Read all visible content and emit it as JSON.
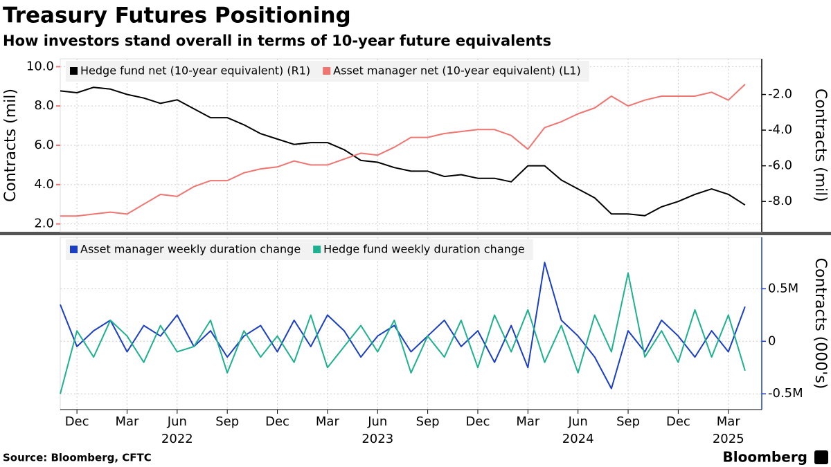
{
  "title": "Treasury Futures Positioning",
  "subtitle": "How investors stand overall in terms of 10-year future equivalents",
  "footer": {
    "source": "Source: Bloomberg, CFTC",
    "brand": "Bloomberg"
  },
  "chart_data": [
    {
      "type": "line",
      "ylabel": "Contracts (mil)",
      "y2label": "Contracts (mil)",
      "x": [
        "2021-11",
        "2021-12",
        "2022-01",
        "2022-02",
        "2022-03",
        "2022-04",
        "2022-05",
        "2022-06",
        "2022-07",
        "2022-08",
        "2022-09",
        "2022-10",
        "2022-11",
        "2022-12",
        "2023-01",
        "2023-02",
        "2023-03",
        "2023-04",
        "2023-05",
        "2023-06",
        "2023-07",
        "2023-08",
        "2023-09",
        "2023-10",
        "2023-11",
        "2023-12",
        "2024-01",
        "2024-02",
        "2024-03",
        "2024-04",
        "2024-05",
        "2024-06",
        "2024-07",
        "2024-08",
        "2024-09",
        "2024-10",
        "2024-11",
        "2024-12",
        "2025-01",
        "2025-02",
        "2025-03",
        "2025-04"
      ],
      "xlim": [
        "2021-11",
        "2025-05"
      ],
      "series": [
        {
          "name": "Hedge fund net (10-year equivalent) (R1)",
          "color": "#000000",
          "axis": "y2",
          "values": [
            -1.8,
            -1.9,
            -1.6,
            -1.7,
            -2.0,
            -2.2,
            -2.5,
            -2.3,
            -2.8,
            -3.3,
            -3.3,
            -3.7,
            -4.2,
            -4.5,
            -4.8,
            -4.7,
            -4.7,
            -5.1,
            -5.7,
            -5.8,
            -6.1,
            -6.3,
            -6.3,
            -6.6,
            -6.5,
            -6.7,
            -6.7,
            -6.9,
            -6.0,
            -6.0,
            -6.8,
            -7.3,
            -7.8,
            -8.7,
            -8.7,
            -8.8,
            -8.3,
            -8.0,
            -7.6,
            -7.3,
            -7.6,
            -8.2
          ]
        },
        {
          "name": "Asset manager net (10-year equivalent) (L1)",
          "color": "#f07470",
          "values": [
            2.4,
            2.4,
            2.5,
            2.6,
            2.5,
            3.0,
            3.5,
            3.4,
            3.9,
            4.2,
            4.2,
            4.6,
            4.8,
            4.9,
            5.2,
            5.0,
            5.0,
            5.3,
            5.6,
            5.5,
            5.9,
            6.4,
            6.4,
            6.6,
            6.7,
            6.8,
            6.8,
            6.5,
            5.8,
            6.9,
            7.2,
            7.6,
            7.9,
            8.5,
            8.0,
            8.3,
            8.5,
            8.5,
            8.5,
            8.7,
            8.3,
            9.1
          ]
        }
      ],
      "ylim": [
        1.6,
        10.4
      ],
      "yticks": [
        {
          "value": 10,
          "label": "10.0"
        },
        {
          "value": 8,
          "label": "8.0"
        },
        {
          "value": 6,
          "label": "6.0"
        },
        {
          "value": 4,
          "label": "4.0"
        },
        {
          "value": 2,
          "label": "2.0"
        }
      ],
      "y2lim": [
        -9.7,
        0
      ],
      "y2ticks": [
        {
          "value": -2,
          "label": "-2.0"
        },
        {
          "value": -4,
          "label": "-4.0"
        },
        {
          "value": -6,
          "label": "-6.0"
        },
        {
          "value": -8,
          "label": "-8.0"
        }
      ],
      "grid": true
    },
    {
      "type": "line",
      "y2label": "Contracts (000's)",
      "x": [
        "2021-11",
        "2021-12",
        "2022-01",
        "2022-02",
        "2022-03",
        "2022-04",
        "2022-05",
        "2022-06",
        "2022-07",
        "2022-08",
        "2022-09",
        "2022-10",
        "2022-11",
        "2022-12",
        "2023-01",
        "2023-02",
        "2023-03",
        "2023-04",
        "2023-05",
        "2023-06",
        "2023-07",
        "2023-08",
        "2023-09",
        "2023-10",
        "2023-11",
        "2023-12",
        "2024-01",
        "2024-02",
        "2024-03",
        "2024-04",
        "2024-05",
        "2024-06",
        "2024-07",
        "2024-08",
        "2024-09",
        "2024-10",
        "2024-11",
        "2024-12",
        "2025-01",
        "2025-02",
        "2025-03",
        "2025-04"
      ],
      "xlim": [
        "2021-11",
        "2025-05"
      ],
      "xticks": [
        {
          "value": "2021-12",
          "label": "Dec"
        },
        {
          "value": "2022-03",
          "label": "Mar"
        },
        {
          "value": "2022-06",
          "label": "Jun"
        },
        {
          "value": "2022-09",
          "label": "Sep"
        },
        {
          "value": "2022-12",
          "label": "Dec"
        },
        {
          "value": "2023-03",
          "label": "Mar"
        },
        {
          "value": "2023-06",
          "label": "Jun"
        },
        {
          "value": "2023-09",
          "label": "Sep"
        },
        {
          "value": "2023-12",
          "label": "Dec"
        },
        {
          "value": "2024-03",
          "label": "Mar"
        },
        {
          "value": "2024-06",
          "label": "Jun"
        },
        {
          "value": "2024-09",
          "label": "Sep"
        },
        {
          "value": "2024-12",
          "label": "Dec"
        },
        {
          "value": "2025-03",
          "label": "Mar"
        }
      ],
      "year_labels": [
        {
          "value": "2022-06",
          "label": "2022"
        },
        {
          "value": "2023-06",
          "label": "2023"
        },
        {
          "value": "2024-06",
          "label": "2024"
        },
        {
          "value": "2025-03",
          "label": "2025"
        }
      ],
      "series": [
        {
          "name": "Asset manager weekly duration change",
          "color": "#1a3ec4",
          "axis": "y2",
          "values": [
            350,
            -50,
            100,
            200,
            -100,
            150,
            50,
            250,
            -50,
            100,
            -150,
            50,
            150,
            -100,
            200,
            -50,
            250,
            100,
            -150,
            50,
            150,
            -100,
            50,
            200,
            -50,
            100,
            -200,
            150,
            -250,
            750,
            200,
            50,
            -150,
            -450,
            100,
            -100,
            200,
            50,
            -150,
            100,
            -100,
            330
          ]
        },
        {
          "name": "Hedge fund weekly duration change",
          "color": "#1fb08f",
          "axis": "y2",
          "values": [
            -500,
            100,
            -150,
            200,
            50,
            -200,
            150,
            -100,
            -50,
            200,
            -300,
            100,
            -150,
            50,
            -200,
            250,
            -250,
            -50,
            150,
            -100,
            200,
            -300,
            50,
            -150,
            200,
            -250,
            250,
            -100,
            300,
            -200,
            150,
            -300,
            250,
            -100,
            650,
            -150,
            100,
            -200,
            300,
            -150,
            250,
            -280
          ]
        }
      ],
      "y2lim": [
        -650,
        990
      ],
      "y2ticks": [
        {
          "value": 500,
          "label": "0.5M"
        },
        0,
        {
          "value": -500,
          "label": "-0.5M"
        }
      ],
      "grid": true
    }
  ]
}
